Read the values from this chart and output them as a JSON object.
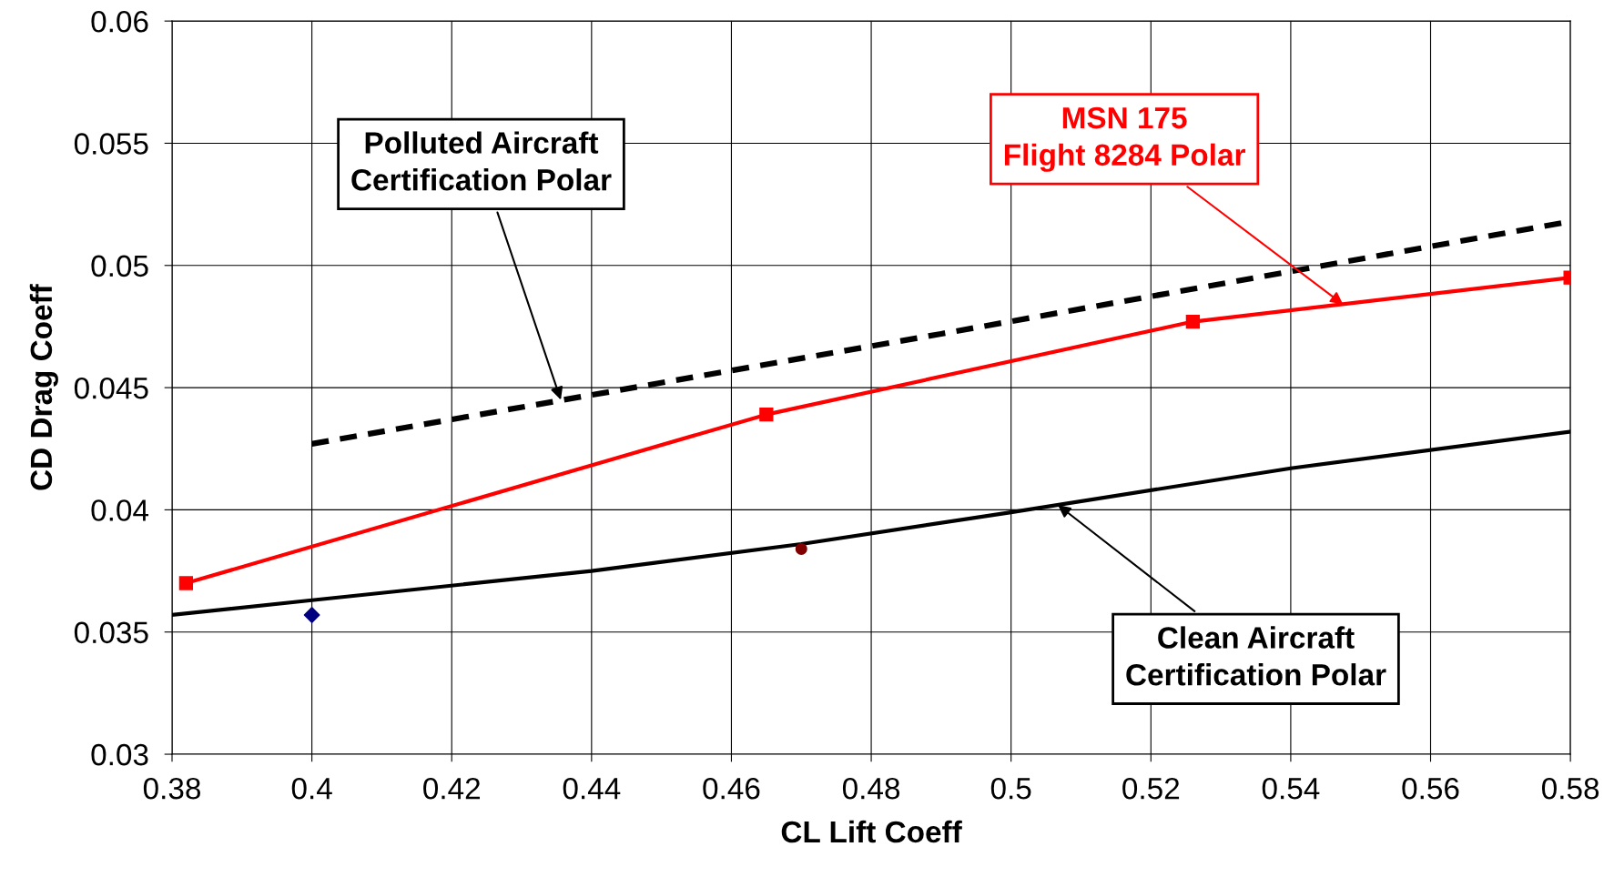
{
  "chart_data": {
    "type": "line",
    "xlabel": "CL Lift Coeff",
    "ylabel": "CD Drag Coeff",
    "xlim": [
      0.38,
      0.58
    ],
    "xticks": [
      0.38,
      0.4,
      0.42,
      0.44,
      0.46,
      0.48,
      0.5,
      0.52,
      0.54,
      0.56,
      0.58
    ],
    "ylim": [
      0.03,
      0.06
    ],
    "yticks": [
      0.03,
      0.035,
      0.04,
      0.045,
      0.05,
      0.055,
      0.06
    ],
    "grid": true,
    "legend": false,
    "series": [
      {
        "color": "#000000",
        "line_style": "dashed",
        "marker": "none",
        "x": [
          0.4,
          0.49,
          0.58
        ],
        "values": [
          0.0427,
          0.0472,
          0.0518
        ]
      },
      {
        "color": "#ff0000",
        "line_style": "solid",
        "marker": "square",
        "x": [
          0.382,
          0.465,
          0.526,
          0.58
        ],
        "values": [
          0.037,
          0.0439,
          0.0477,
          0.0495
        ]
      },
      {
        "color": "#000000",
        "line_style": "solid",
        "marker": "none",
        "x": [
          0.38,
          0.4,
          0.44,
          0.47,
          0.5,
          0.54,
          0.58
        ],
        "values": [
          0.0357,
          0.0363,
          0.0375,
          0.0386,
          0.0399,
          0.0417,
          0.0432
        ]
      },
      {
        "type": "scatter",
        "color": "#000080",
        "marker": "diamond",
        "x": [
          0.4
        ],
        "values": [
          0.0357
        ]
      },
      {
        "type": "scatter",
        "color": "#800000",
        "marker": "circle",
        "x": [
          0.47
        ],
        "values": [
          0.0384
        ]
      }
    ],
    "annotations": [
      {
        "text": "Polluted Aircraft\nCertification Polar",
        "x": 0.4356,
        "y": 0.0445
      },
      {
        "text": "MSN 175\nFlight 8284 Polar",
        "x": 0.5475,
        "y": 0.0484
      },
      {
        "text": "Clean Aircraft\nCertification Polar",
        "x": 0.5067,
        "y": 0.0402
      }
    ]
  }
}
